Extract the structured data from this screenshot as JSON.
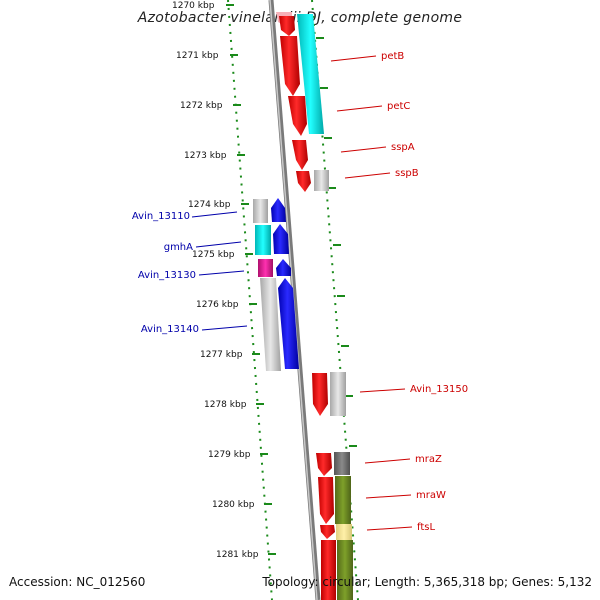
{
  "title": "Azotobacter vinelandii DJ, complete genome",
  "accession": "Accession: NC_012560",
  "topology": "Topology: circular; Length: 5,365,318 bp; Genes: 5,132",
  "ticks": [
    "1270 kbp",
    "1271 kbp",
    "1272 kbp",
    "1273 kbp",
    "1274 kbp",
    "1275 kbp",
    "1276 kbp",
    "1277 kbp",
    "1278 kbp",
    "1279 kbp",
    "1280 kbp",
    "1281 kbp"
  ],
  "labels": {
    "right": [
      "petB",
      "petC",
      "sspA",
      "sspB",
      "Avin_13150",
      "mraZ",
      "mraW",
      "ftsL"
    ],
    "left": [
      "Avin_13110",
      "gmhA",
      "Avin_13130",
      "Avin_13140"
    ]
  },
  "colors": {
    "forward_gene": "#ff0000",
    "reverse_gene": "#0000ff",
    "right_label": "#cc0000",
    "left_label": "#0000aa",
    "backbone": "#808080",
    "tick": "#228b22",
    "cyan_feature": "#00d8d8",
    "grey_feature": "#c0c0c0",
    "magenta_feature": "#e0209a",
    "olive_feature": "#6b8e23",
    "yellow_feature": "#f0e68c",
    "darkgrey_feature": "#707070"
  }
}
